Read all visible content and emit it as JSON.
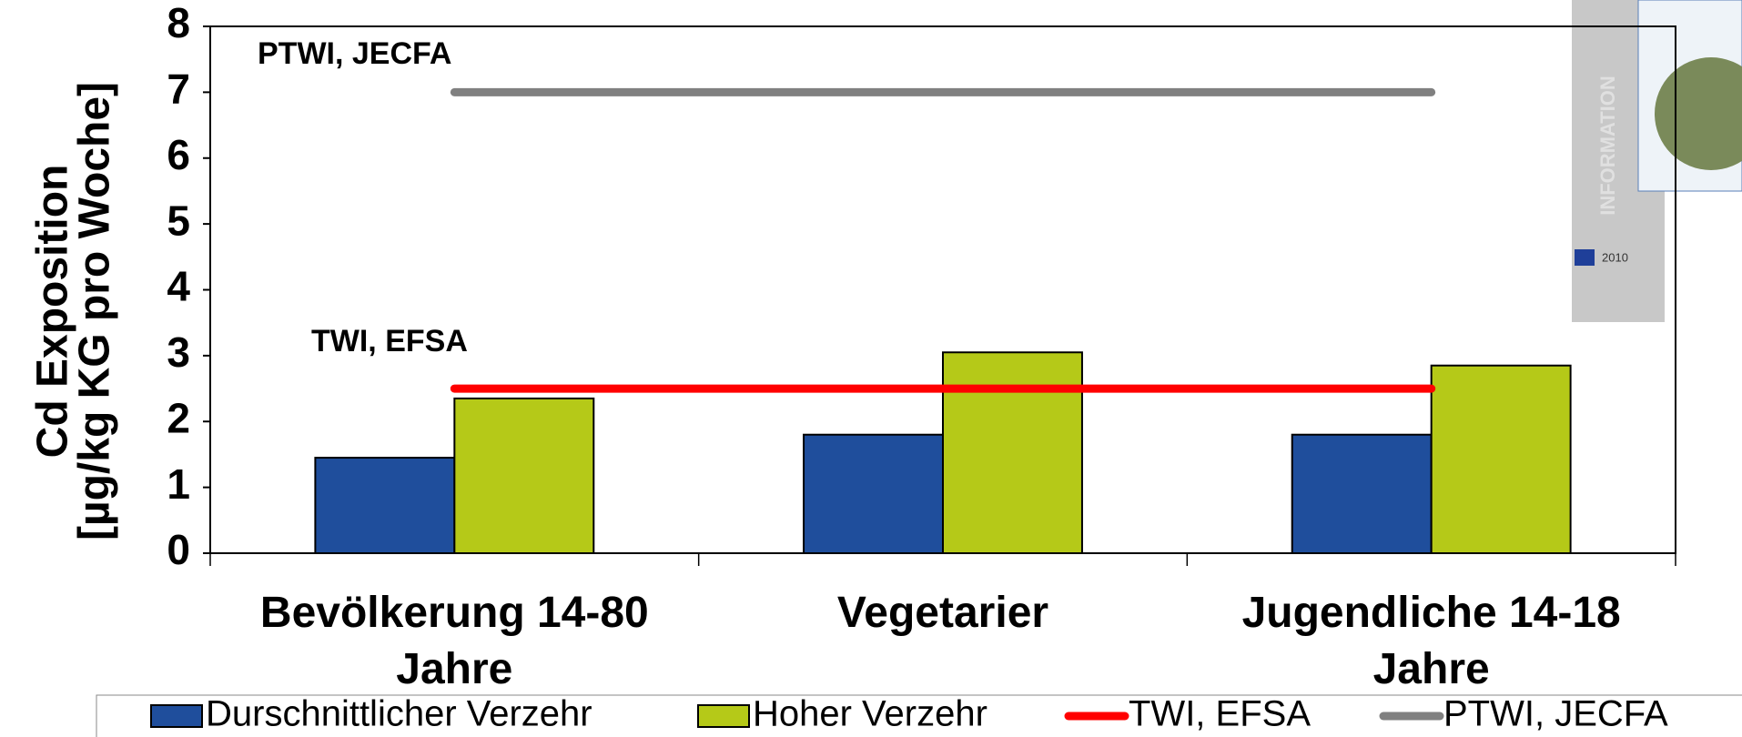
{
  "chart_data": {
    "type": "bar",
    "ylabel": [
      "Cd Exposition",
      "[µg/kg KG pro Woche]"
    ],
    "categories": [
      "Bevölkerung 14-80 Jahre",
      "Vegetarier",
      "Jugendliche 14-18 Jahre"
    ],
    "series": [
      {
        "name": "Durschnittlicher Verzehr",
        "color": "#1f4e9c",
        "values": [
          1.45,
          1.8,
          1.8
        ]
      },
      {
        "name": "Hoher Verzehr",
        "color": "#b5c918",
        "values": [
          2.35,
          3.05,
          2.85
        ]
      }
    ],
    "reference_lines": [
      {
        "name": "TWI, EFSA",
        "color": "#ff0000",
        "value": 2.5
      },
      {
        "name": "PTWI, JECFA",
        "color": "#808080",
        "value": 7
      }
    ],
    "annotations": [
      "PTWI, JECFA",
      "TWI, EFSA"
    ],
    "ylim": [
      0,
      8
    ],
    "yticks": [
      0,
      1,
      2,
      3,
      4,
      5,
      6,
      7,
      8
    ],
    "grid": false
  },
  "inset": {
    "side_text": "INFORMATION",
    "year": "2010"
  }
}
